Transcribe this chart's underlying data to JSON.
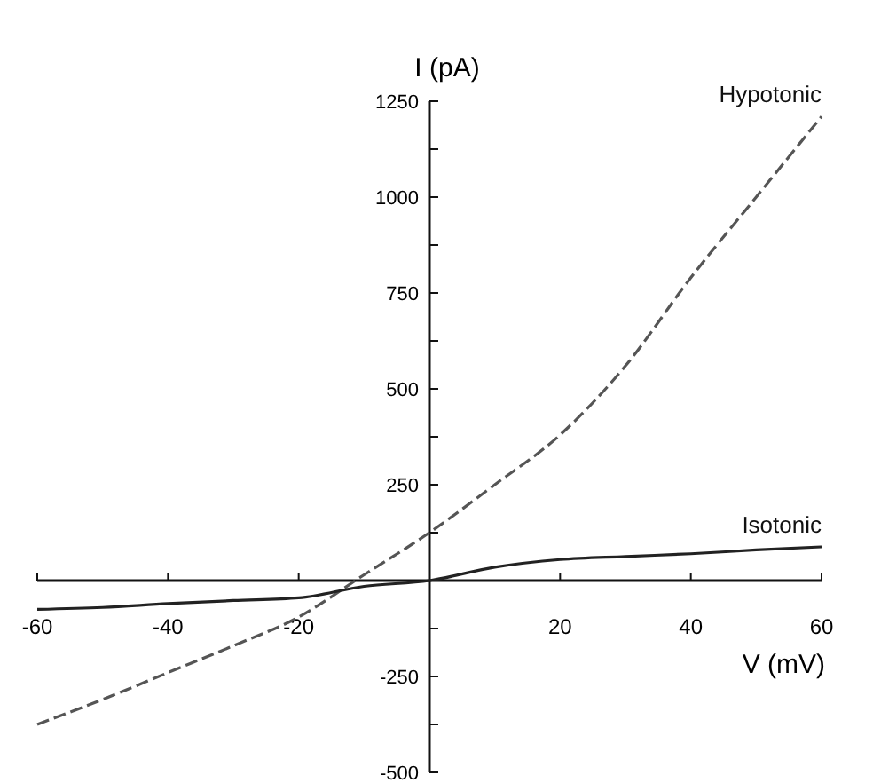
{
  "chart_data": {
    "type": "line",
    "xlabel": "V (mV)",
    "ylabel": "I (pA)",
    "x": [
      -60,
      -50,
      -40,
      -30,
      -20,
      -10,
      0,
      10,
      20,
      30,
      40,
      50,
      60
    ],
    "series": [
      {
        "name": "Hypotonic",
        "color": "#555555",
        "line_style": "dashed",
        "values": [
          -375,
          -310,
          -240,
          -170,
          -95,
          15,
          125,
          250,
          380,
          560,
          790,
          1000,
          1210
        ]
      },
      {
        "name": "Isotonic",
        "color": "#222222",
        "line_style": "solid",
        "values": [
          -75,
          -70,
          -60,
          -52,
          -45,
          -15,
          0,
          35,
          55,
          63,
          70,
          80,
          88
        ]
      }
    ],
    "xlim": [
      -60,
      60
    ],
    "xticks": [
      -60,
      -40,
      -20,
      20,
      40,
      60
    ],
    "ylim": [
      -500,
      1250
    ],
    "yticks": [
      -500,
      {
        "value": -375,
        "label": null
      },
      -250,
      {
        "value": -125,
        "label": null
      },
      {
        "value": 125,
        "label": null
      },
      250,
      {
        "value": 375,
        "label": null
      },
      500,
      {
        "value": 625,
        "label": null
      },
      750,
      {
        "value": 875,
        "label": null
      },
      1000,
      {
        "value": 1125,
        "label": null
      },
      1250
    ],
    "grid": false,
    "marker": "none"
  }
}
